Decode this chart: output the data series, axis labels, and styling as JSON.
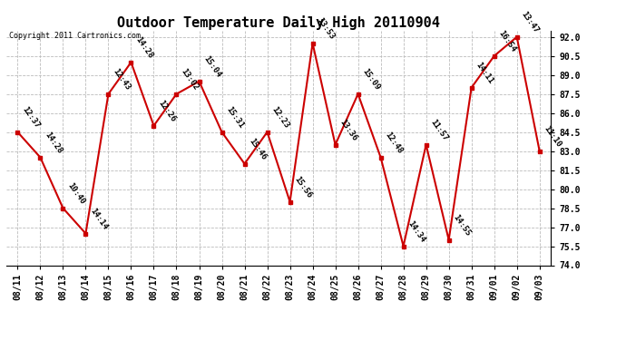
{
  "title": "Outdoor Temperature Daily High 20110904",
  "copyright": "Copyright 2011 Cartronics.com",
  "dates": [
    "08/11",
    "08/12",
    "08/13",
    "08/14",
    "08/15",
    "08/16",
    "08/17",
    "08/18",
    "08/19",
    "08/20",
    "08/21",
    "08/22",
    "08/23",
    "08/24",
    "08/25",
    "08/26",
    "08/27",
    "08/28",
    "08/29",
    "08/30",
    "08/31",
    "09/01",
    "09/02",
    "09/03"
  ],
  "values": [
    84.5,
    82.5,
    78.5,
    76.5,
    87.5,
    90.0,
    85.0,
    87.5,
    88.5,
    84.5,
    82.0,
    84.5,
    79.0,
    91.5,
    83.5,
    87.5,
    82.5,
    75.5,
    83.5,
    76.0,
    88.0,
    90.5,
    92.0,
    83.0
  ],
  "labels": [
    "12:37",
    "14:28",
    "10:40",
    "14:14",
    "12:43",
    "14:28",
    "12:26",
    "13:02",
    "15:04",
    "15:31",
    "15:46",
    "12:23",
    "15:56",
    "13:53",
    "13:36",
    "15:09",
    "12:48",
    "14:34",
    "11:57",
    "14:55",
    "14:11",
    "16:54",
    "13:47",
    "11:10"
  ],
  "line_color": "#cc0000",
  "marker_color": "#cc0000",
  "bg_color": "#ffffff",
  "grid_color": "#bbbbbb",
  "ylim": [
    74.0,
    92.5
  ],
  "yticks": [
    74.0,
    75.5,
    77.0,
    78.5,
    80.0,
    81.5,
    83.0,
    84.5,
    86.0,
    87.5,
    89.0,
    90.5,
    92.0
  ],
  "title_fontsize": 11,
  "label_fontsize": 6.5,
  "tick_fontsize": 7.0
}
